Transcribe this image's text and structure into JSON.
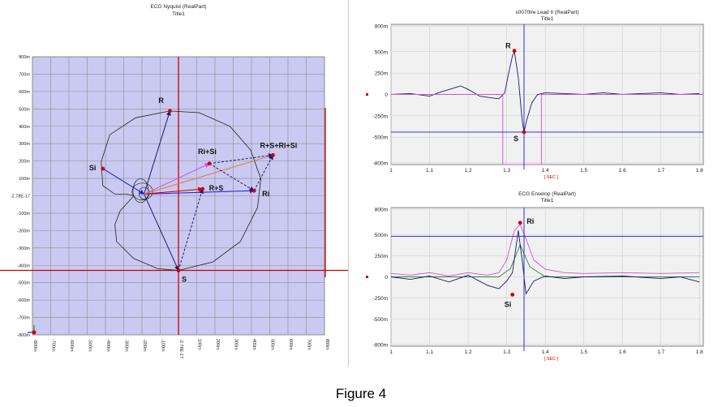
{
  "figure_caption": "Figure 4",
  "colors": {
    "nyquist_bg": "#c9c9f2",
    "plot_bg": "#f1f1f1",
    "grid": "#8e8e8e",
    "red": "#cc0000",
    "blue": "#1a1ae6",
    "magenta": "#d94cd9",
    "orange": "#e07a2a",
    "navy": "#1a1a6e",
    "green": "#2a8a2a"
  },
  "chart_data": [
    {
      "type": "scatter",
      "title": "ECG Nyquist (RealPart)",
      "subtitle": "Title1",
      "xlim": [
        -0.85,
        0.85
      ],
      "ylim": [
        -0.82,
        0.82
      ],
      "y_ticks": [
        "800m",
        "700m",
        "600m",
        "500m",
        "400m",
        "300m",
        "200m",
        "100m",
        "-2.78E-17",
        "-100m",
        "-200m",
        "-300m",
        "-400m",
        "-500m",
        "-600m",
        "-700m",
        "-800m"
      ],
      "x_ticks": [
        "-800m",
        "-700m",
        "-600m",
        "-500m",
        "-400m",
        "-300m",
        "-200m",
        "-100m",
        "-2.78E-17",
        "100m",
        "200m",
        "300m",
        "400m",
        "500m",
        "600m",
        "700m",
        "800m"
      ],
      "cursor": {
        "x": 0.0,
        "y": -0.44
      },
      "points": [
        {
          "label": "R",
          "x": -0.05,
          "y": 0.5
        },
        {
          "label": "S",
          "x": 0.0,
          "y": -0.44
        },
        {
          "label": "Si",
          "x": -0.44,
          "y": 0.16
        },
        {
          "label": "Ri",
          "x": 0.44,
          "y": 0.03
        },
        {
          "label": "R+S",
          "x": 0.14,
          "y": 0.04
        },
        {
          "label": "Ri+Si",
          "x": 0.18,
          "y": 0.19
        },
        {
          "label": "R+S+Ri+Si",
          "x": 0.55,
          "y": 0.24
        }
      ],
      "loop": [
        [
          0.0,
          -0.44
        ],
        [
          0.2,
          -0.39
        ],
        [
          0.36,
          -0.27
        ],
        [
          0.46,
          -0.07
        ],
        [
          0.48,
          0.1
        ],
        [
          0.42,
          0.27
        ],
        [
          0.3,
          0.41
        ],
        [
          0.12,
          0.49
        ],
        [
          -0.05,
          0.5
        ],
        [
          -0.25,
          0.46
        ],
        [
          -0.4,
          0.36
        ],
        [
          -0.45,
          0.2
        ],
        [
          -0.44,
          0.06
        ],
        [
          -0.37,
          0.01
        ],
        [
          -0.3,
          0.01
        ],
        [
          -0.26,
          0.0
        ],
        [
          -0.34,
          -0.09
        ],
        [
          -0.37,
          -0.17
        ],
        [
          -0.36,
          -0.27
        ],
        [
          -0.26,
          -0.37
        ],
        [
          -0.12,
          -0.43
        ],
        [
          0.0,
          -0.44
        ]
      ],
      "inner_loops": [
        {
          "cx": -0.22,
          "cy": 0.03,
          "rx": 0.045,
          "ry": 0.07
        },
        {
          "cx": -0.2,
          "cy": 0.015,
          "rx": 0.03,
          "ry": 0.035
        },
        {
          "cx": -0.21,
          "cy": 0.025,
          "rx": 0.06,
          "ry": 0.05
        }
      ],
      "vectors": [
        {
          "from": [
            -0.2,
            0.01
          ],
          "to": [
            -0.05,
            0.5
          ],
          "color": "navy",
          "style": "solid"
        },
        {
          "from": [
            -0.2,
            0.01
          ],
          "to": [
            0.0,
            -0.44
          ],
          "color": "navy",
          "style": "solid"
        },
        {
          "from": [
            -0.44,
            0.16
          ],
          "to": [
            -0.2,
            0.01
          ],
          "color": "blue",
          "style": "solid"
        },
        {
          "from": [
            -0.2,
            0.01
          ],
          "to": [
            0.44,
            0.03
          ],
          "color": "blue",
          "style": "solid"
        },
        {
          "from": [
            -0.2,
            0.01
          ],
          "to": [
            0.14,
            0.04
          ],
          "color": "red",
          "style": "solid"
        },
        {
          "from": [
            -0.2,
            0.01
          ],
          "to": [
            0.18,
            0.19
          ],
          "color": "magenta",
          "style": "solid"
        },
        {
          "from": [
            -0.2,
            0.01
          ],
          "to": [
            0.55,
            0.24
          ],
          "color": "orange",
          "style": "solid"
        },
        {
          "from": [
            0.0,
            -0.44
          ],
          "to": [
            0.14,
            0.04
          ],
          "color": "navy",
          "style": "dashed"
        },
        {
          "from": [
            0.18,
            0.19
          ],
          "to": [
            0.44,
            0.03
          ],
          "color": "navy",
          "style": "dashed"
        },
        {
          "from": [
            0.18,
            0.19
          ],
          "to": [
            0.55,
            0.24
          ],
          "color": "navy",
          "style": "dashed"
        },
        {
          "from": [
            0.44,
            0.03
          ],
          "to": [
            0.55,
            0.24
          ],
          "color": "navy",
          "style": "dashed"
        }
      ]
    },
    {
      "type": "line",
      "title": "s0070lre Lead II (RealPart)",
      "subtitle": "Title1",
      "xlabel": "[ SEC ]",
      "xlim": [
        1.0,
        1.81
      ],
      "ylim": [
        -0.82,
        0.82
      ],
      "x_ticks": [
        "1",
        "1.1",
        "1.2",
        "1.3",
        "1.4",
        "1.5",
        "1.6",
        "1.7",
        "1.8"
      ],
      "y_ticks": [
        "800m",
        "500m",
        "250m",
        "0",
        "-250m",
        "-500m",
        "-800m"
      ],
      "cursor_x": 1.345,
      "hlines": [
        {
          "y": -0.44,
          "color": "blue"
        }
      ],
      "series": [
        {
          "color": "navy",
          "x": [
            1.0,
            1.05,
            1.1,
            1.13,
            1.16,
            1.18,
            1.2,
            1.23,
            1.26,
            1.28,
            1.295,
            1.305,
            1.315,
            1.32,
            1.33,
            1.34,
            1.345,
            1.352,
            1.365,
            1.38,
            1.4,
            1.45,
            1.5,
            1.55,
            1.6,
            1.65,
            1.7,
            1.75,
            1.8
          ],
          "y": [
            0.0,
            0.01,
            -0.02,
            0.03,
            0.07,
            0.1,
            0.06,
            -0.02,
            -0.04,
            -0.05,
            0.02,
            0.25,
            0.45,
            0.5,
            0.2,
            -0.3,
            -0.44,
            -0.3,
            -0.1,
            0.0,
            0.02,
            0.01,
            0.0,
            0.02,
            0.0,
            0.01,
            0.02,
            0.0,
            0.01
          ]
        },
        {
          "color": "magenta",
          "x": [
            1.0,
            1.29,
            1.29,
            1.39,
            1.39,
            1.81
          ],
          "y": [
            0.0,
            0.0,
            -0.82,
            -0.82,
            0.0,
            0.0
          ]
        }
      ],
      "points": [
        {
          "label": "R",
          "x": 1.32,
          "y": 0.51
        },
        {
          "label": "S",
          "x": 1.345,
          "y": -0.44
        }
      ]
    },
    {
      "type": "line",
      "title": "ECG Envelop (RealPart)",
      "subtitle": "Title1",
      "xlabel": "[ SEC ]",
      "xlim": [
        1.0,
        1.81
      ],
      "ylim": [
        -0.82,
        0.82
      ],
      "x_ticks": [
        "1",
        "1.1",
        "1.2",
        "1.3",
        "1.4",
        "1.5",
        "1.6",
        "1.7",
        "1.8"
      ],
      "y_ticks": [
        "800m",
        "500m",
        "250m",
        "0",
        "-250m",
        "-500m",
        "-800m"
      ],
      "cursor_x": 1.345,
      "hlines": [
        {
          "y": 0.48,
          "color": "blue"
        }
      ],
      "series": [
        {
          "color": "magenta",
          "x": [
            1.0,
            1.05,
            1.1,
            1.15,
            1.2,
            1.25,
            1.28,
            1.3,
            1.32,
            1.335,
            1.35,
            1.37,
            1.4,
            1.45,
            1.5,
            1.6,
            1.7,
            1.8
          ],
          "y": [
            0.04,
            0.02,
            0.05,
            0.01,
            0.05,
            0.02,
            0.05,
            0.2,
            0.55,
            0.62,
            0.45,
            0.2,
            0.09,
            0.05,
            0.04,
            0.05,
            0.04,
            0.05
          ]
        },
        {
          "color": "green",
          "x": [
            1.0,
            1.1,
            1.2,
            1.28,
            1.31,
            1.335,
            1.36,
            1.4,
            1.5,
            1.6,
            1.7,
            1.8
          ],
          "y": [
            0.0,
            0.0,
            0.0,
            0.0,
            0.1,
            0.38,
            0.12,
            0.0,
            0.0,
            0.0,
            0.0,
            0.0
          ]
        },
        {
          "color": "navy",
          "x": [
            1.0,
            1.05,
            1.1,
            1.15,
            1.2,
            1.25,
            1.28,
            1.3,
            1.315,
            1.33,
            1.34,
            1.35,
            1.37,
            1.4,
            1.45,
            1.5,
            1.6,
            1.7,
            1.75,
            1.8
          ],
          "y": [
            0.0,
            -0.03,
            0.01,
            -0.06,
            0.02,
            -0.1,
            -0.14,
            -0.05,
            0.05,
            0.55,
            0.2,
            -0.2,
            -0.05,
            0.01,
            -0.02,
            0.0,
            0.01,
            -0.02,
            0.0,
            -0.06
          ]
        }
      ],
      "points": [
        {
          "label": "Ri",
          "x": 1.335,
          "y": 0.64
        },
        {
          "label": "Si",
          "x": 1.315,
          "y": -0.21
        }
      ]
    }
  ]
}
